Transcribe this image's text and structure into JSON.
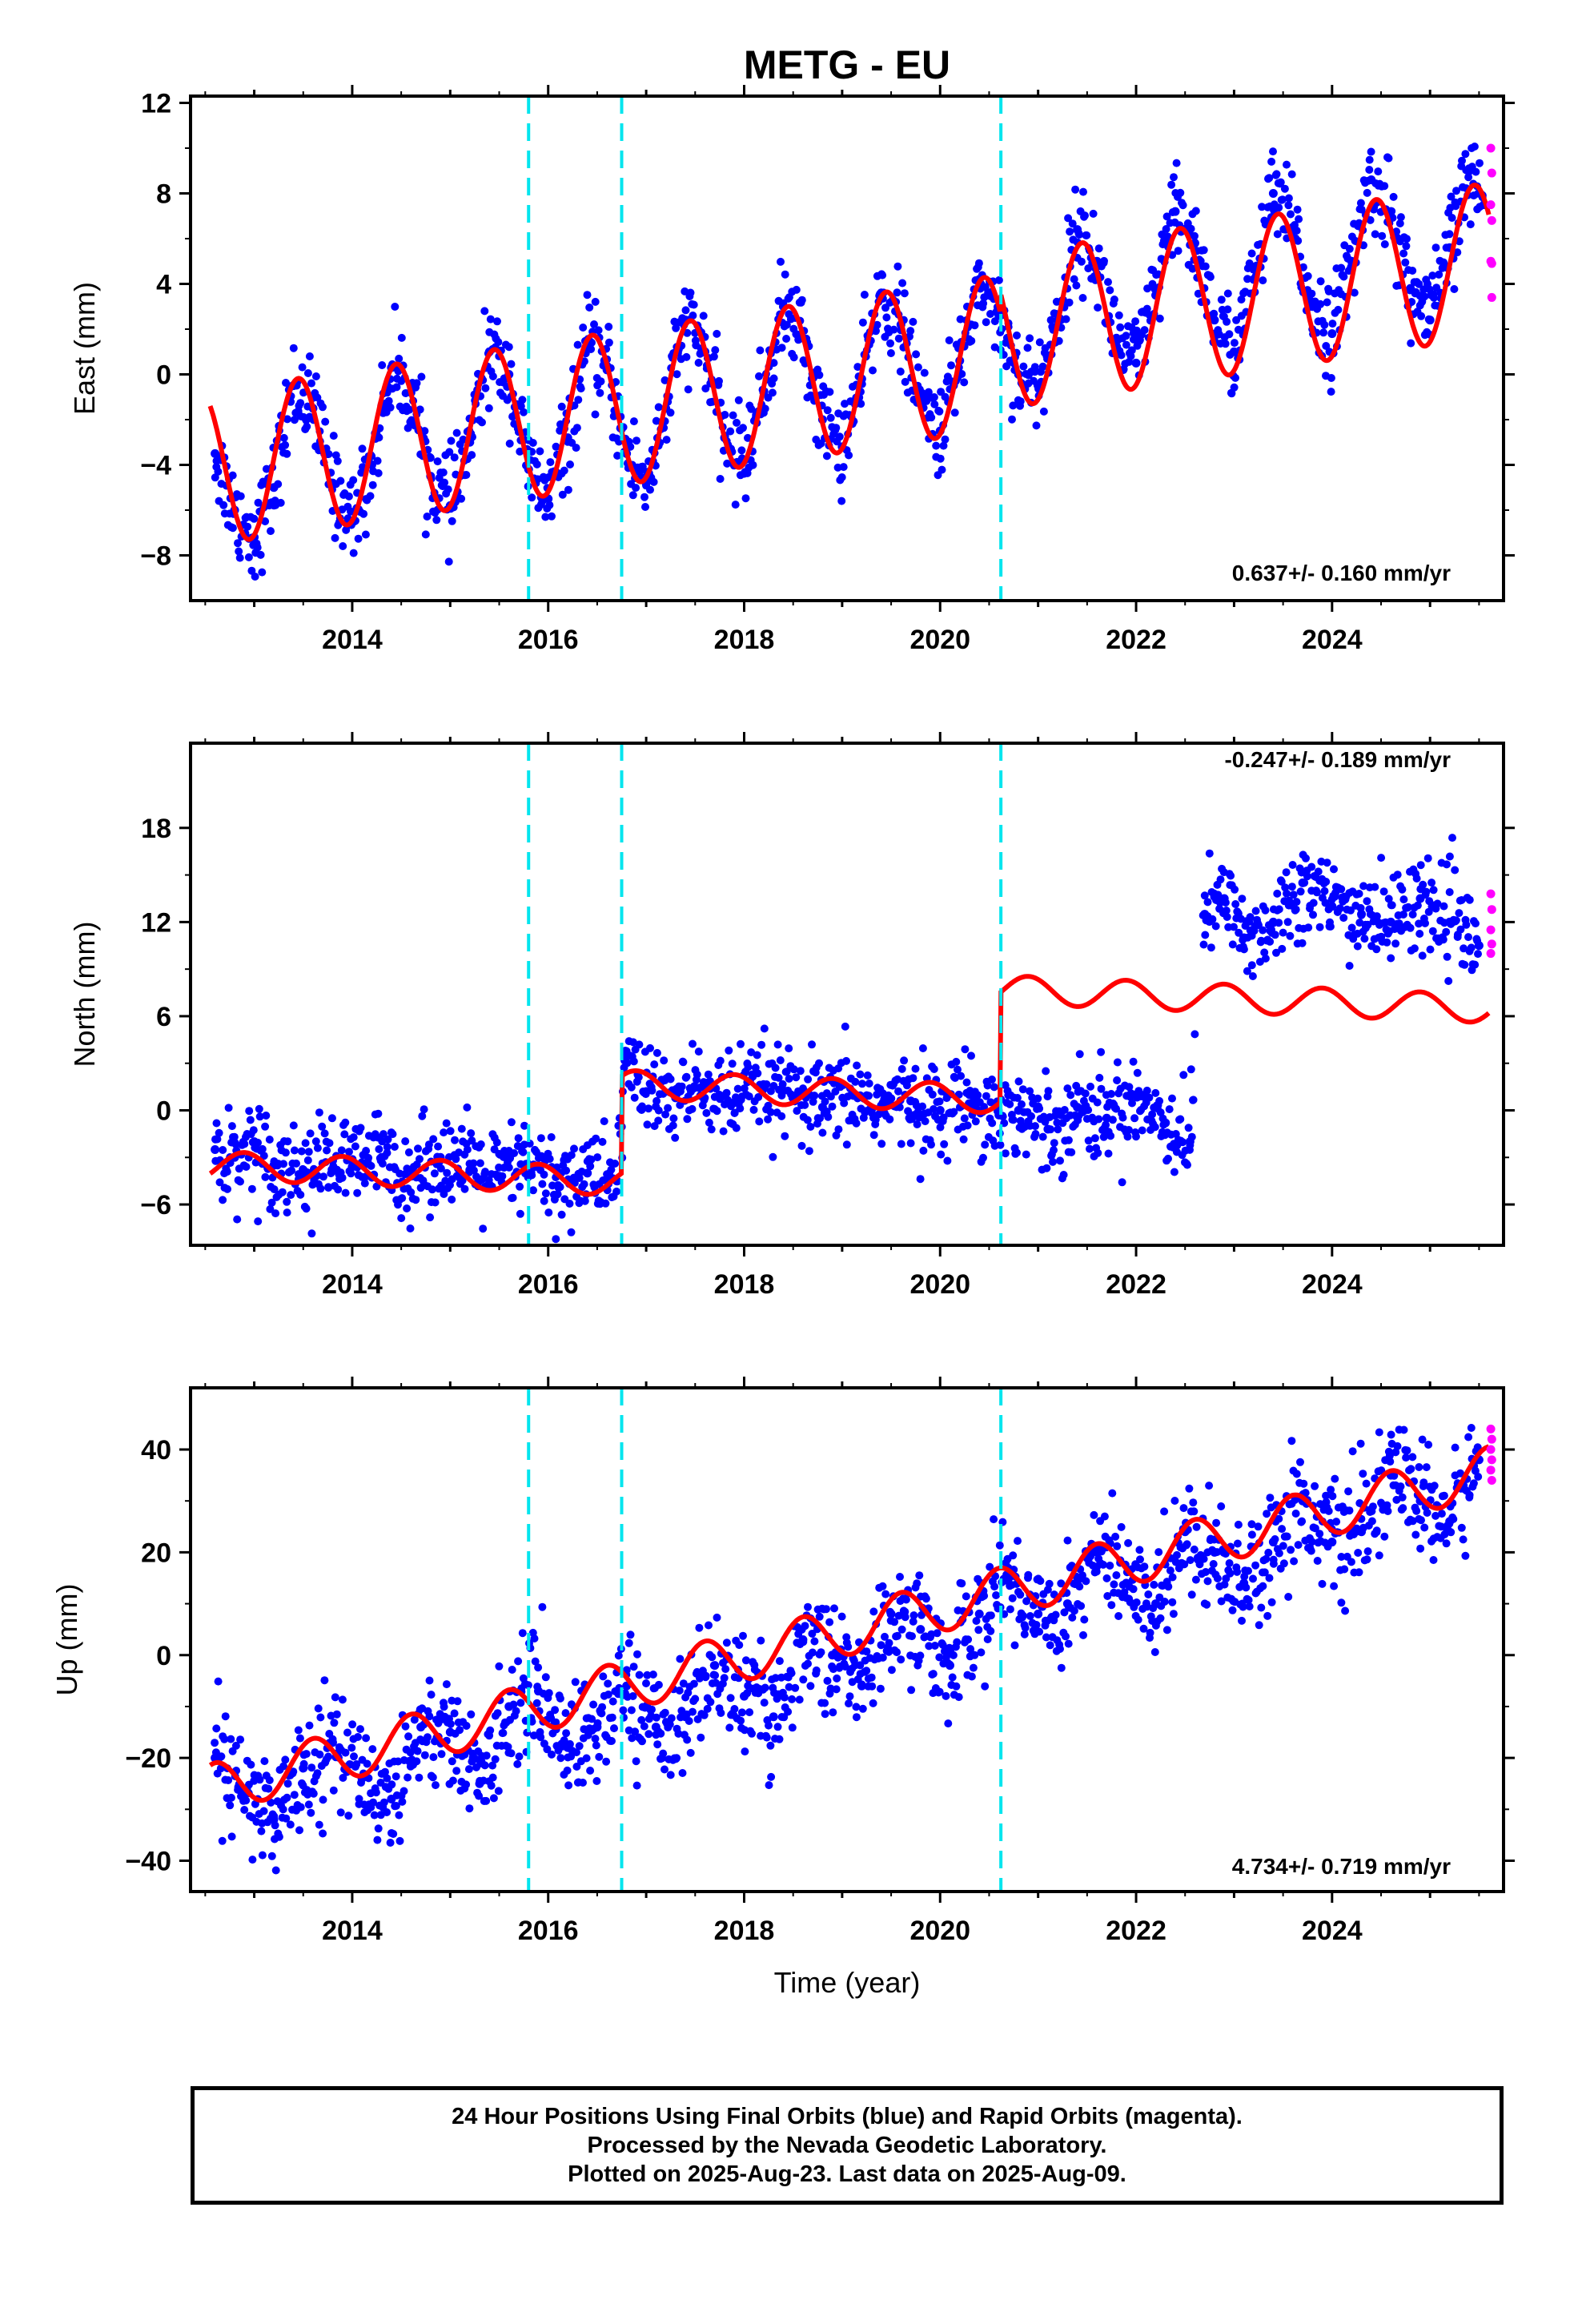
{
  "chart_data": {
    "type": "scatter",
    "title": "METG - EU",
    "xlabel": "Time (year)",
    "x_ticks": [
      2014,
      2016,
      2018,
      2020,
      2022,
      2024
    ],
    "xlim": [
      2012.35,
      2025.75
    ],
    "event_lines": [
      2015.8,
      2016.75,
      2020.62
    ],
    "colors": {
      "final_orbits": "#0000ff",
      "rapid_orbits": "#ff00ff",
      "model": "#ff0000",
      "event_lines": "#00e5ee",
      "frame": "#000000"
    },
    "panels": [
      {
        "id": "east",
        "ylabel": "East (mm)",
        "ylim": [
          -10,
          12.3
        ],
        "y_ticks": [
          -8,
          -4,
          0,
          4,
          8,
          12
        ],
        "rate_text": "0.637+/- 0.160 mm/yr",
        "model": {
          "trend_start_year": 2012.55,
          "offsets": [
            -4.0,
            2.6
          ],
          "offset_years": [
            2016.75,
            2020.62
          ],
          "trend_slope": 0.637,
          "amplitude": 3.4,
          "phase_peak": 0.45
        },
        "final_orbits": [
          [
            2012.6,
            -3.5
          ],
          [
            2012.8,
            -6.0
          ],
          [
            2013.0,
            -7.2
          ],
          [
            2013.2,
            -5.0
          ],
          [
            2013.4,
            -0.5
          ],
          [
            2013.6,
            -1.5
          ],
          [
            2013.8,
            -4.8
          ],
          [
            2014.0,
            -6.5
          ],
          [
            2014.2,
            -4.0
          ],
          [
            2014.4,
            0.3
          ],
          [
            2014.6,
            -0.8
          ],
          [
            2014.8,
            -4.5
          ],
          [
            2015.0,
            -5.8
          ],
          [
            2015.2,
            -3.0
          ],
          [
            2015.4,
            1.0
          ],
          [
            2015.6,
            0.0
          ],
          [
            2015.8,
            -4.2
          ],
          [
            2016.0,
            -5.5
          ],
          [
            2016.2,
            -2.8
          ],
          [
            2016.4,
            1.2
          ],
          [
            2016.6,
            0.2
          ],
          [
            2016.8,
            -3.5
          ],
          [
            2017.0,
            -4.8
          ],
          [
            2017.2,
            -1.5
          ],
          [
            2017.4,
            2.4
          ],
          [
            2017.6,
            1.0
          ],
          [
            2017.8,
            -2.8
          ],
          [
            2018.0,
            -3.8
          ],
          [
            2018.2,
            -0.8
          ],
          [
            2018.4,
            3.0
          ],
          [
            2018.6,
            1.6
          ],
          [
            2018.8,
            -2.0
          ],
          [
            2019.0,
            -3.2
          ],
          [
            2019.2,
            -0.2
          ],
          [
            2019.4,
            3.6
          ],
          [
            2019.6,
            2.2
          ],
          [
            2019.8,
            -1.2
          ],
          [
            2020.0,
            -2.5
          ],
          [
            2020.2,
            0.6
          ],
          [
            2020.4,
            4.2
          ],
          [
            2020.6,
            2.6
          ],
          [
            2020.8,
            0.0
          ],
          [
            2021.0,
            -0.5
          ],
          [
            2021.2,
            2.4
          ],
          [
            2021.4,
            6.4
          ],
          [
            2021.6,
            5.0
          ],
          [
            2021.8,
            1.6
          ],
          [
            2022.0,
            0.5
          ],
          [
            2022.2,
            3.5
          ],
          [
            2022.4,
            7.2
          ],
          [
            2022.6,
            5.8
          ],
          [
            2022.8,
            2.4
          ],
          [
            2023.0,
            1.0
          ],
          [
            2023.2,
            4.2
          ],
          [
            2023.4,
            8.0
          ],
          [
            2023.6,
            6.5
          ],
          [
            2023.8,
            3.0
          ],
          [
            2024.0,
            1.8
          ],
          [
            2024.2,
            5.0
          ],
          [
            2024.4,
            8.6
          ],
          [
            2024.6,
            7.2
          ],
          [
            2024.8,
            3.8
          ],
          [
            2025.0,
            2.4
          ],
          [
            2025.2,
            5.6
          ],
          [
            2025.4,
            9.0
          ],
          [
            2025.55,
            7.5
          ]
        ],
        "rapid_orbits": [
          [
            2025.62,
            10.0
          ],
          [
            2025.63,
            8.9
          ],
          [
            2025.62,
            7.5
          ],
          [
            2025.63,
            6.8
          ],
          [
            2025.62,
            5.0
          ],
          [
            2025.63,
            4.9
          ],
          [
            2025.63,
            3.4
          ]
        ]
      },
      {
        "id": "north",
        "ylabel": "North (mm)",
        "ylim": [
          -8.6,
          23.4
        ],
        "y_ticks": [
          -6,
          0,
          6,
          12,
          18
        ],
        "rate_text": "-0.247+/- 0.189 mm/yr",
        "model": {
          "trend_start_year": 2012.55,
          "base": -3.5,
          "offsets": [
            6.2,
            7.0
          ],
          "offset_years": [
            2016.75,
            2020.62
          ],
          "trend_slope": -0.247,
          "amplitude": 0.9,
          "phase_peak": 0.9
        },
        "final_orbits": [
          [
            2012.6,
            -2.5
          ],
          [
            2012.8,
            -3.0
          ],
          [
            2013.0,
            -2.0
          ],
          [
            2013.2,
            -3.5
          ],
          [
            2013.5,
            -3.8
          ],
          [
            2013.8,
            -3.2
          ],
          [
            2014.0,
            -3.6
          ],
          [
            2014.3,
            -3.0
          ],
          [
            2014.6,
            -4.2
          ],
          [
            2014.9,
            -3.0
          ],
          [
            2015.2,
            -3.8
          ],
          [
            2015.5,
            -4.2
          ],
          [
            2015.8,
            -3.5
          ],
          [
            2016.1,
            -4.8
          ],
          [
            2016.4,
            -4.0
          ],
          [
            2016.7,
            -4.5
          ],
          [
            2016.8,
            3.5
          ],
          [
            2017.0,
            1.2
          ],
          [
            2017.3,
            0.8
          ],
          [
            2017.6,
            1.5
          ],
          [
            2017.9,
            0.5
          ],
          [
            2018.2,
            1.6
          ],
          [
            2018.5,
            0.8
          ],
          [
            2018.8,
            0.2
          ],
          [
            2019.1,
            1.0
          ],
          [
            2019.4,
            0.3
          ],
          [
            2019.7,
            0.6
          ],
          [
            2020.0,
            0.0
          ],
          [
            2020.3,
            1.0
          ],
          [
            2020.6,
            -0.3
          ],
          [
            2020.8,
            0.0
          ],
          [
            2021.1,
            -1.2
          ],
          [
            2021.4,
            0.2
          ],
          [
            2021.7,
            -0.5
          ],
          [
            2022.0,
            1.0
          ],
          [
            2022.3,
            -0.8
          ],
          [
            2022.55,
            -2.0
          ],
          [
            2022.7,
            12.5
          ],
          [
            2022.9,
            13.5
          ],
          [
            2023.1,
            11.0
          ],
          [
            2023.4,
            12.0
          ],
          [
            2023.7,
            14.5
          ],
          [
            2024.0,
            13.0
          ],
          [
            2024.3,
            12.5
          ],
          [
            2024.6,
            12.0
          ],
          [
            2024.9,
            13.5
          ],
          [
            2025.2,
            12.0
          ],
          [
            2025.5,
            10.5
          ]
        ],
        "rapid_orbits": [
          [
            2025.62,
            13.8
          ],
          [
            2025.63,
            12.8
          ],
          [
            2025.62,
            11.5
          ],
          [
            2025.63,
            10.6
          ],
          [
            2025.62,
            10.0
          ]
        ]
      },
      {
        "id": "up",
        "ylabel": "Up (mm)",
        "ylim": [
          -46,
          52
        ],
        "y_ticks": [
          -40,
          -20,
          0,
          20,
          40
        ],
        "rate_text": "4.734+/- 0.719 mm/yr",
        "model": {
          "trend_start_year": 2012.55,
          "base": -26,
          "offsets": [
            0,
            0
          ],
          "offset_years": [
            2016.75,
            2020.62
          ],
          "trend_slope": 4.734,
          "amplitude": 4.8,
          "phase_peak": 0.6
        },
        "final_orbits": [
          [
            2012.6,
            -20
          ],
          [
            2012.9,
            -27
          ],
          [
            2013.2,
            -32
          ],
          [
            2013.5,
            -22
          ],
          [
            2013.8,
            -17
          ],
          [
            2014.1,
            -24
          ],
          [
            2014.4,
            -28
          ],
          [
            2014.7,
            -14
          ],
          [
            2015.0,
            -15
          ],
          [
            2015.3,
            -25
          ],
          [
            2015.6,
            -10
          ],
          [
            2015.9,
            -7
          ],
          [
            2016.2,
            -18
          ],
          [
            2016.5,
            -14
          ],
          [
            2016.8,
            -6
          ],
          [
            2017.1,
            -14
          ],
          [
            2017.4,
            -12
          ],
          [
            2017.7,
            -2
          ],
          [
            2018.0,
            -8
          ],
          [
            2018.3,
            -12
          ],
          [
            2018.6,
            3
          ],
          [
            2018.9,
            0
          ],
          [
            2019.2,
            -6
          ],
          [
            2019.5,
            8
          ],
          [
            2019.8,
            5
          ],
          [
            2020.1,
            -2
          ],
          [
            2020.4,
            8
          ],
          [
            2020.7,
            15
          ],
          [
            2021.0,
            8
          ],
          [
            2021.3,
            10
          ],
          [
            2021.6,
            20
          ],
          [
            2021.9,
            14
          ],
          [
            2022.2,
            10
          ],
          [
            2022.5,
            24
          ],
          [
            2022.8,
            20
          ],
          [
            2023.1,
            14
          ],
          [
            2023.4,
            22
          ],
          [
            2023.7,
            30
          ],
          [
            2024.0,
            22
          ],
          [
            2024.3,
            24
          ],
          [
            2024.6,
            35
          ],
          [
            2024.9,
            30
          ],
          [
            2025.2,
            26
          ],
          [
            2025.5,
            38
          ]
        ],
        "rapid_orbits": [
          [
            2025.62,
            44
          ],
          [
            2025.63,
            42
          ],
          [
            2025.62,
            40
          ],
          [
            2025.63,
            38
          ],
          [
            2025.62,
            36
          ],
          [
            2025.63,
            34
          ]
        ]
      }
    ]
  },
  "footer": {
    "line1": "24 Hour Positions Using Final Orbits (blue) and Rapid Orbits (magenta).",
    "line2": "Processed by the Nevada Geodetic Laboratory.",
    "line3": "Plotted on 2025-Aug-23. Last data on 2025-Aug-09."
  }
}
